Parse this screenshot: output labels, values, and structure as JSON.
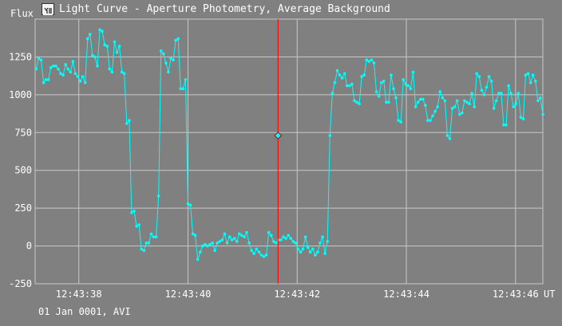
{
  "window": {
    "title": "Light Curve - Aperture Photometry, Average Background",
    "icon": "light-curve-icon"
  },
  "footer": {
    "date_text": "01 Jan 0001, AVI"
  },
  "colors": {
    "background": "#808080",
    "grid": "#c8c8c8",
    "series": "#00ffff",
    "cursor": "#ff0000"
  },
  "chart_data": {
    "type": "line",
    "ylabel": "Flux",
    "xunit": "UT",
    "xlim": [
      "12:43:37.2",
      "12:43:46.5"
    ],
    "ylim": [
      -250,
      1500
    ],
    "yticks": [
      -250,
      0,
      250,
      500,
      750,
      1000,
      1250
    ],
    "ytick_labels": [
      "-250",
      "0",
      "250",
      "500",
      "750",
      "1000",
      "1250"
    ],
    "xticks": [
      "12:43:38",
      "12:43:40",
      "12:43:42",
      "12:43:44",
      "12:43:46"
    ],
    "grid": true,
    "cursor": {
      "time": "12:43:41.65",
      "value": 730
    },
    "series": [
      {
        "values": [
          1170,
          1240,
          1230,
          1080,
          1100,
          1100,
          1180,
          1190,
          1190,
          1170,
          1140,
          1130,
          1200,
          1170,
          1150,
          1220,
          1140,
          1120,
          1090,
          1120,
          1080,
          1370,
          1400,
          1260,
          1250,
          1190,
          1430,
          1420,
          1330,
          1320,
          1170,
          1150,
          1350,
          1280,
          1320,
          1150,
          1140,
          810,
          830,
          220,
          230,
          130,
          140,
          -20,
          -30,
          20,
          20,
          80,
          60,
          60,
          330,
          1290,
          1270,
          1210,
          1150,
          1240,
          1230,
          1360,
          1370,
          1040,
          1040,
          1100,
          280,
          270,
          80,
          70,
          -90,
          -40,
          0,
          10,
          0,
          10,
          20,
          -30,
          20,
          30,
          40,
          80,
          20,
          60,
          40,
          50,
          30,
          80,
          70,
          60,
          90,
          20,
          -30,
          -50,
          -20,
          -40,
          -60,
          -70,
          -60,
          90,
          70,
          30,
          20,
          40,
          40,
          60,
          50,
          70,
          50,
          30,
          20,
          -20,
          -40,
          -20,
          60,
          -10,
          -40,
          -20,
          -60,
          -40,
          20,
          60,
          -50,
          30,
          730,
          1010,
          1080,
          1160,
          1130,
          1110,
          1140,
          1060,
          1060,
          1070,
          960,
          950,
          940,
          1120,
          1130,
          1230,
          1220,
          1230,
          1210,
          1020,
          990,
          1080,
          1090,
          950,
          950,
          1130,
          1040,
          980,
          830,
          820,
          1100,
          1070,
          1060,
          1040,
          1150,
          920,
          950,
          970,
          970,
          930,
          830,
          830,
          860,
          890,
          920,
          1020,
          980,
          960,
          730,
          710,
          910,
          920,
          960,
          870,
          880,
          960,
          950,
          940,
          1010,
          920,
          1140,
          1120,
          1030,
          1000,
          1050,
          1120,
          1090,
          910,
          960,
          1010,
          1010,
          800,
          800,
          1060,
          1010,
          920,
          940,
          1010,
          850,
          840,
          1130,
          1140,
          1080,
          1130,
          1090,
          960,
          980,
          870
        ]
      }
    ]
  }
}
